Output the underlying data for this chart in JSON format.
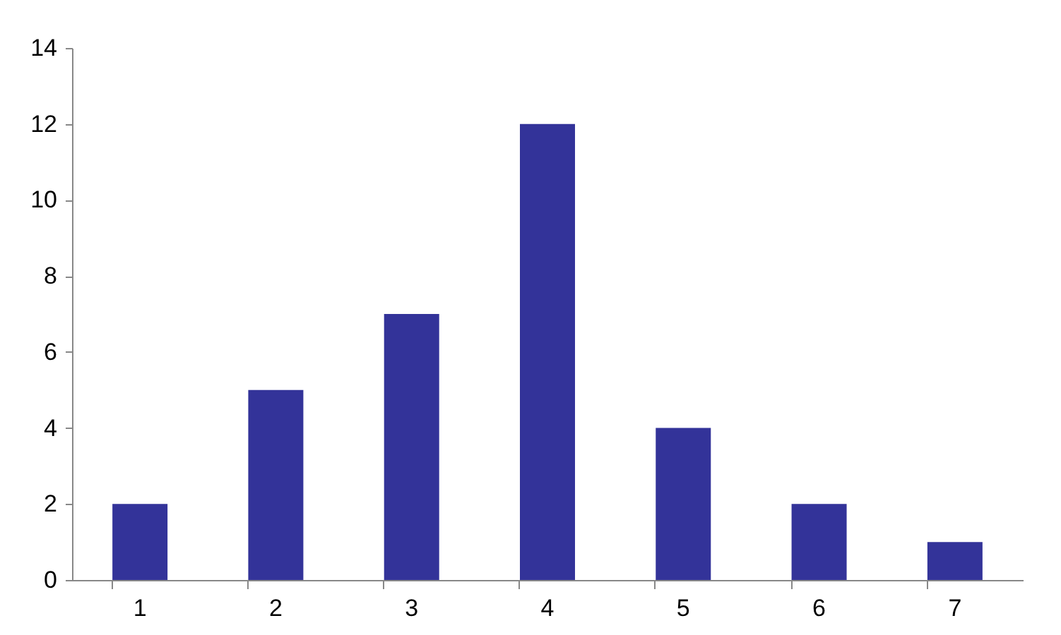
{
  "chart_data": {
    "type": "bar",
    "categories": [
      "1",
      "2",
      "3",
      "4",
      "5",
      "6",
      "7"
    ],
    "values": [
      2,
      5,
      7,
      12,
      4,
      2,
      1
    ],
    "color": "#333399",
    "ylim": [
      0,
      14
    ],
    "yticks": [
      0,
      2,
      4,
      6,
      8,
      10,
      12,
      14
    ],
    "grid": false
  }
}
